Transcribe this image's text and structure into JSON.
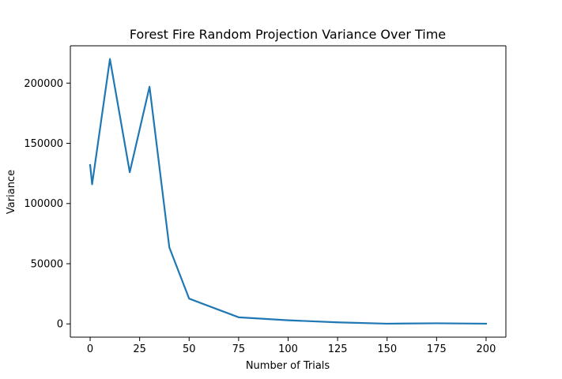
{
  "chart_data": {
    "type": "line",
    "title": "Forest Fire Random Projection Variance Over Time",
    "xlabel": "Number of Trials",
    "ylabel": "Variance",
    "xlim": [
      -10,
      210
    ],
    "ylim": [
      -11000,
      231000
    ],
    "xticks": [
      0,
      25,
      50,
      75,
      100,
      125,
      150,
      175,
      200
    ],
    "yticks": [
      0,
      50000,
      100000,
      150000,
      200000
    ],
    "grid": false,
    "legend": "none",
    "series": [
      {
        "color": "#1f77b4",
        "x": [
          0,
          1,
          10,
          20,
          30,
          40,
          50,
          75,
          100,
          125,
          150,
          175,
          200
        ],
        "y": [
          132000,
          116000,
          220000,
          126000,
          197000,
          63500,
          21000,
          5500,
          3000,
          1300,
          200,
          500,
          200
        ]
      }
    ]
  }
}
